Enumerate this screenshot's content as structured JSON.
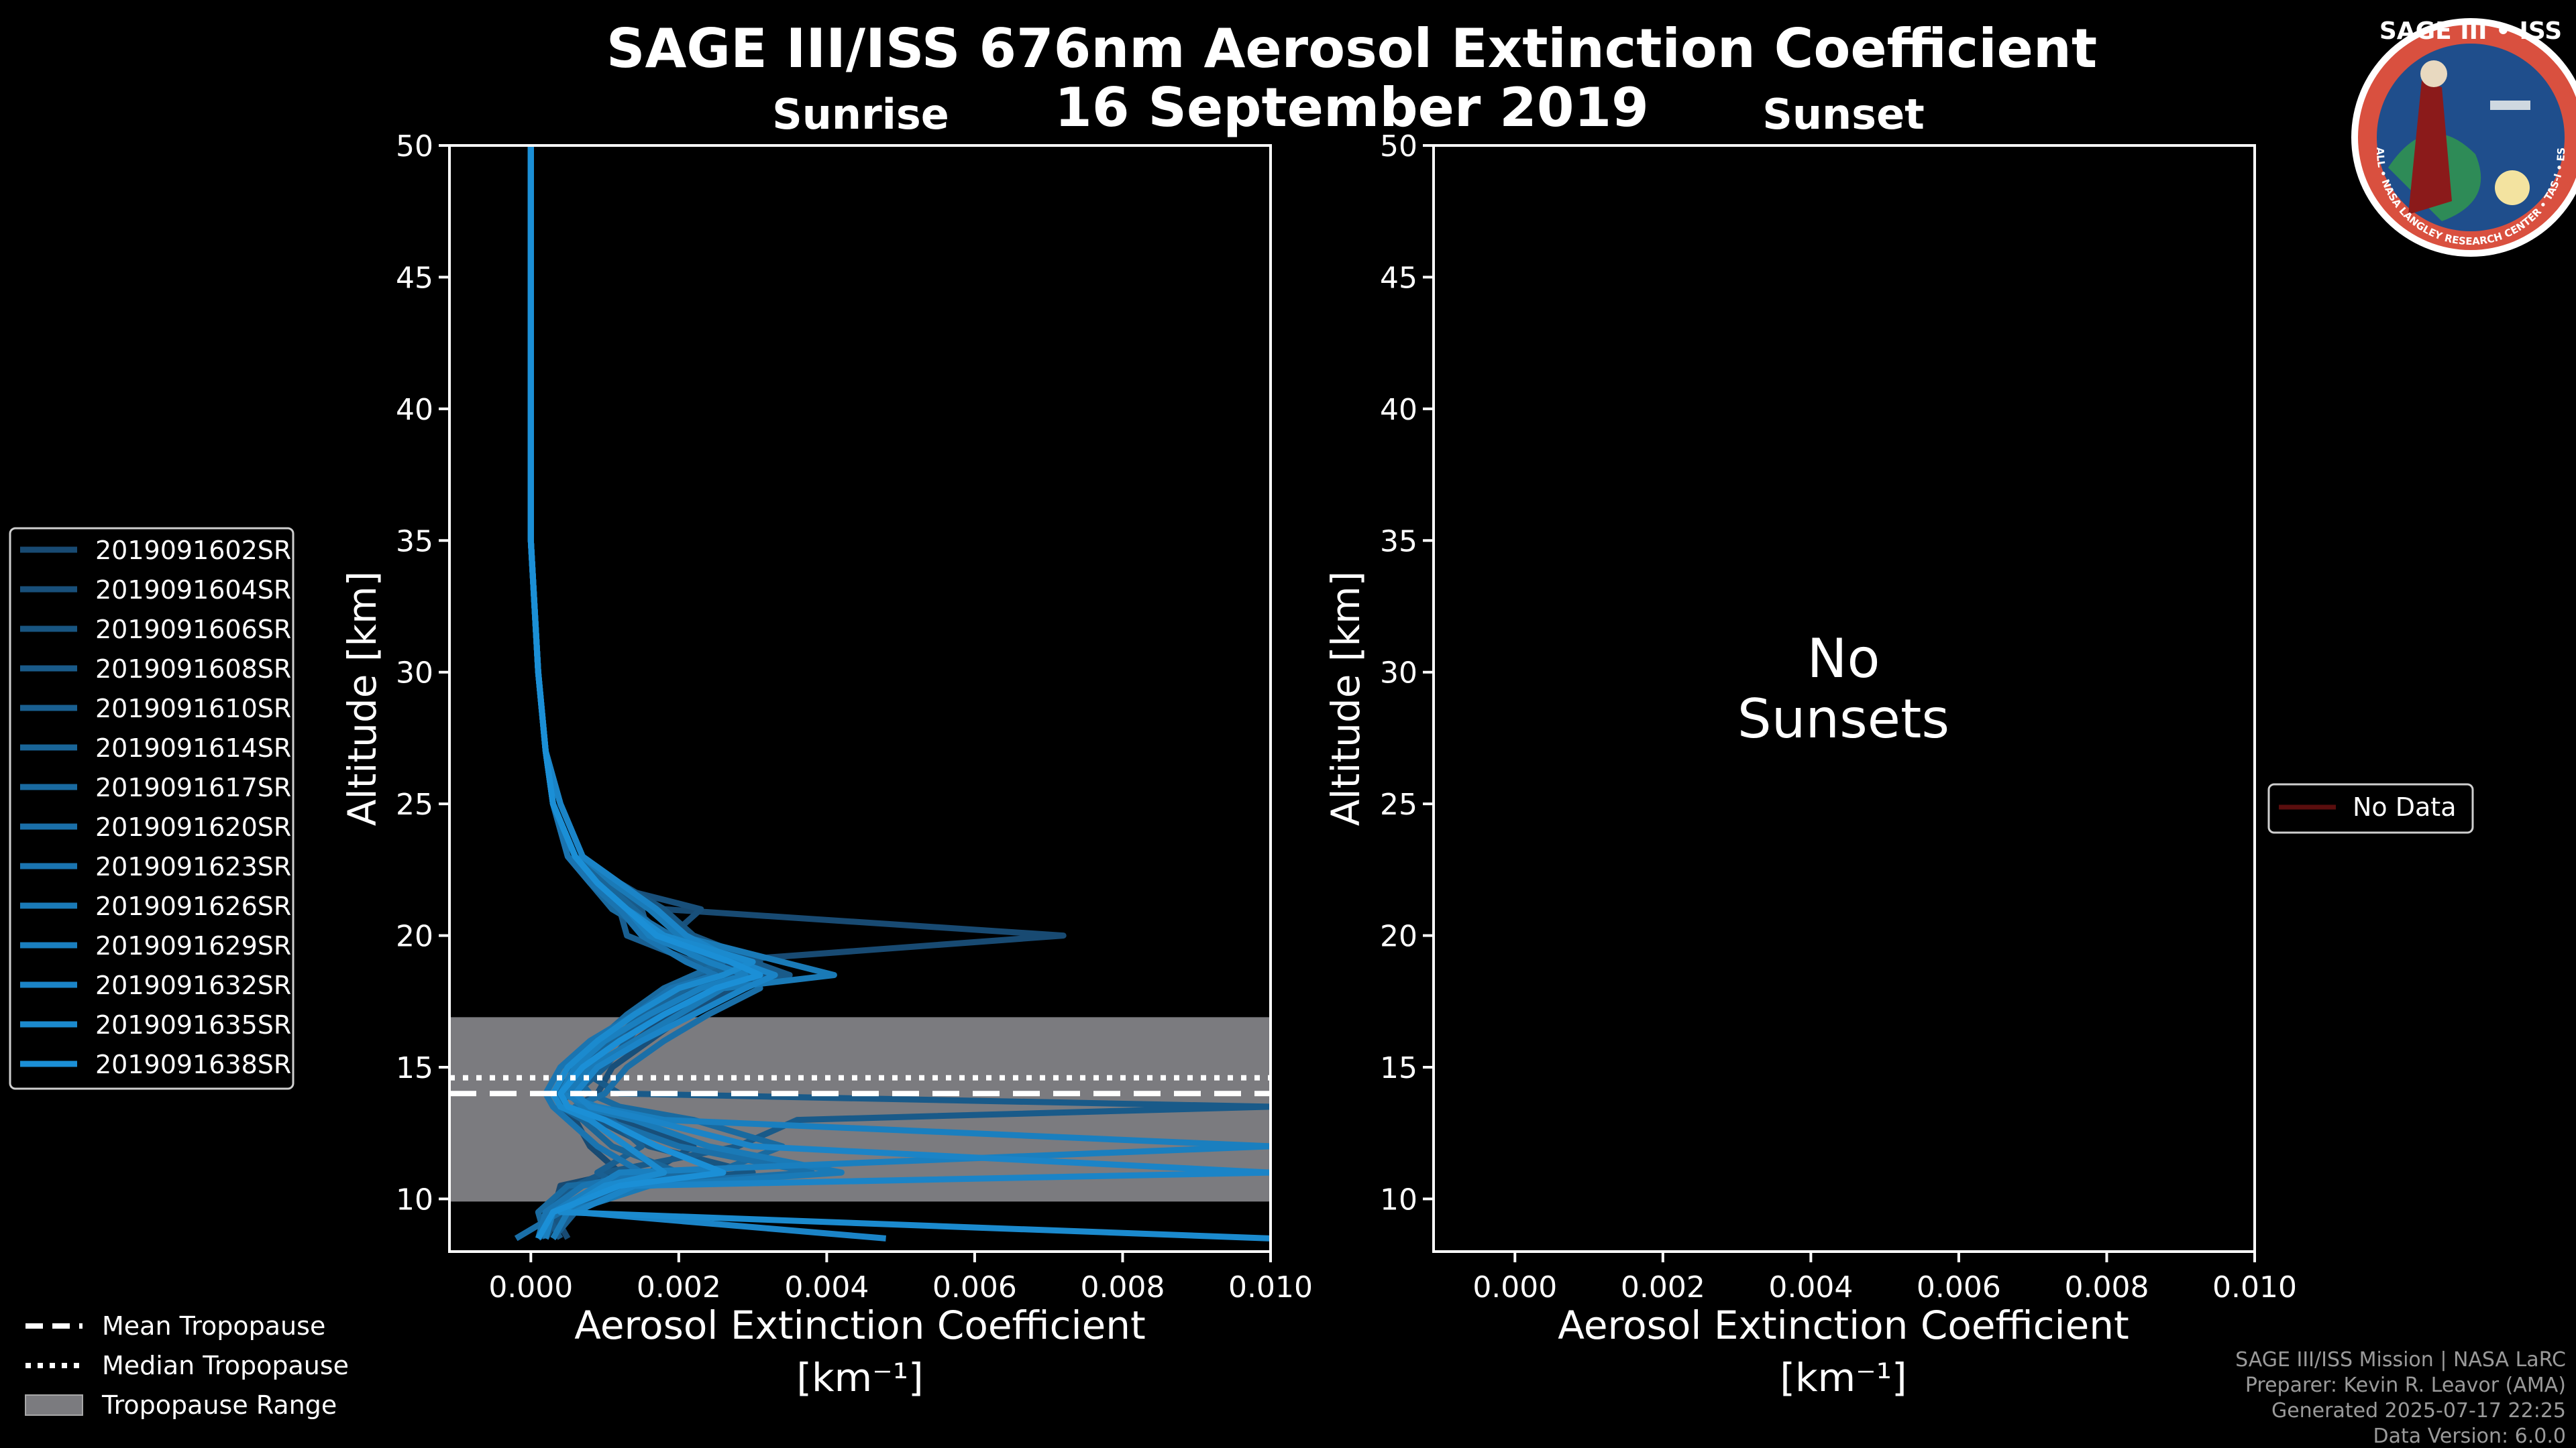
{
  "title": "SAGE III/ISS 676nm Aerosol Extinction Coefficient",
  "date": "16 September 2019",
  "logo": {
    "top_text": "SAGE III • ISS",
    "ring_text": "BALL • NASA LANGLEY RESEARCH CENTER • TAS-I • ESA",
    "ring_color": "#d9503f",
    "field_color": "#1f4e8c"
  },
  "colors": {
    "background": "#000000",
    "foreground": "#ffffff",
    "tropopause_fill": "#7b7b7f",
    "profile_dark": "#184a72",
    "profile_light": "#1b8fd6",
    "no_data": "#5a0e0e"
  },
  "panels": {
    "sunrise": {
      "label": "Sunrise"
    },
    "sunset": {
      "label": "Sunset",
      "empty_line1": "No",
      "empty_line2": "Sunsets"
    }
  },
  "chart_data": [
    {
      "type": "line",
      "panel": "Sunrise",
      "xlabel": "Aerosol Extinction Coefficient",
      "xunit": "[km⁻¹]",
      "ylabel": "Altitude [km]",
      "xlim": [
        -0.0011,
        0.01
      ],
      "ylim": [
        8,
        50
      ],
      "xticks": [
        "0.000",
        "0.002",
        "0.004",
        "0.006",
        "0.008",
        "0.010"
      ],
      "yticks": [
        "10",
        "15",
        "20",
        "25",
        "30",
        "35",
        "40",
        "45",
        "50"
      ],
      "tropopause": {
        "mean": 14.0,
        "median": 14.6,
        "range": [
          9.9,
          16.9
        ]
      },
      "altitudes": [
        8.5,
        9.5,
        10.5,
        11,
        12,
        13,
        13.5,
        14,
        15,
        16,
        17,
        18,
        18.5,
        19,
        20,
        21,
        22,
        23,
        25,
        27,
        30,
        35,
        40,
        45,
        50
      ],
      "series": [
        {
          "name": "2019091602SR",
          "values": [
            0.0005,
            0.0003,
            0.0004,
            0.0012,
            0.0008,
            0.0006,
            0.0004,
            0.0005,
            0.0009,
            0.0014,
            0.0019,
            0.0027,
            0.0026,
            0.0024,
            0.0072,
            0.0018,
            0.0011,
            0.0007,
            0.0004,
            0.0002,
            0.0001,
            0.0,
            0.0,
            0.0,
            0.0
          ]
        },
        {
          "name": "2019091604SR",
          "values": [
            0.0002,
            0.0004,
            0.0013,
            0.0016,
            0.0022,
            0.0012,
            0.0006,
            0.0009,
            0.0011,
            0.0016,
            0.0021,
            0.0028,
            0.0032,
            0.0025,
            0.0019,
            0.0023,
            0.0009,
            0.0006,
            0.0003,
            0.0002,
            0.0001,
            0.0,
            0.0,
            0.0,
            0.0
          ]
        },
        {
          "name": "2019091606SR",
          "values": [
            0.0001,
            0.0005,
            0.0009,
            0.003,
            0.0016,
            0.0009,
            0.0005,
            0.0003,
            0.0007,
            0.0012,
            0.0018,
            0.0024,
            0.0028,
            0.0031,
            0.0022,
            0.0018,
            0.0012,
            0.0007,
            0.0004,
            0.0002,
            0.0001,
            0.0,
            0.0,
            0.0,
            0.0
          ]
        },
        {
          "name": "2019091608SR",
          "values": [
            0.0004,
            0.0002,
            0.0006,
            0.001,
            0.0028,
            0.0036,
            0.01,
            0.0012,
            0.0006,
            0.001,
            0.0017,
            0.0022,
            0.0035,
            0.003,
            0.0016,
            0.0015,
            0.001,
            0.0006,
            0.0003,
            0.0002,
            0.0001,
            0.0,
            0.0,
            0.0,
            0.0
          ]
        },
        {
          "name": "2019091610SR",
          "values": [
            0.0003,
            0.0006,
            0.0012,
            0.0009,
            0.0015,
            0.0011,
            0.0008,
            0.0006,
            0.001,
            0.0013,
            0.0016,
            0.002,
            0.0024,
            0.0022,
            0.0013,
            0.0012,
            0.0009,
            0.0005,
            0.0003,
            0.0002,
            0.0001,
            0.0,
            0.0,
            0.0,
            0.0
          ]
        },
        {
          "name": "2019091614SR",
          "values": [
            0.0001,
            0.0003,
            0.001,
            0.002,
            0.0011,
            0.0007,
            0.0004,
            0.0004,
            0.0006,
            0.0011,
            0.0015,
            0.0021,
            0.0027,
            0.0023,
            0.0018,
            0.0014,
            0.001,
            0.0006,
            0.0003,
            0.0002,
            0.0001,
            0.0,
            0.0,
            0.0,
            0.0
          ]
        },
        {
          "name": "2019091617SR",
          "values": [
            0.0002,
            0.0001,
            0.0005,
            0.0025,
            0.0034,
            0.0022,
            0.0012,
            0.0008,
            0.0005,
            0.0009,
            0.0013,
            0.0018,
            0.0022,
            0.0026,
            0.0017,
            0.0011,
            0.0008,
            0.0005,
            0.0003,
            0.0002,
            0.0001,
            0.0,
            0.0,
            0.0,
            0.0
          ]
        },
        {
          "name": "2019091620SR",
          "values": [
            -0.0002,
            0.0004,
            0.0011,
            0.0038,
            0.002,
            0.001,
            0.0006,
            0.001,
            0.0013,
            0.0018,
            0.0024,
            0.0031,
            0.003,
            0.0027,
            0.0019,
            0.0013,
            0.0009,
            0.0006,
            0.0003,
            0.0002,
            0.0001,
            0.0,
            0.0,
            0.0,
            0.0
          ]
        },
        {
          "name": "2019091623SR",
          "values": [
            0.0001,
            0.0002,
            0.0007,
            0.0015,
            0.0009,
            0.0005,
            0.0003,
            0.0002,
            0.0004,
            0.0008,
            0.0014,
            0.0019,
            0.0025,
            0.0021,
            0.0015,
            0.0012,
            0.0008,
            0.0005,
            0.0003,
            0.0002,
            0.0001,
            0.0,
            0.0,
            0.0,
            0.0
          ]
        },
        {
          "name": "2019091626SR",
          "values": [
            0.0003,
            0.0005,
            0.0016,
            0.0042,
            0.0024,
            0.0014,
            0.0007,
            0.0005,
            0.0008,
            0.0014,
            0.002,
            0.0026,
            0.0041,
            0.0034,
            0.002,
            0.0016,
            0.0011,
            0.0007,
            0.0004,
            0.0002,
            0.0001,
            0.0,
            0.0,
            0.0,
            0.0
          ]
        },
        {
          "name": "2019091629SR",
          "values": [
            0.0002,
            0.0003,
            0.0009,
            0.0012,
            0.01,
            0.0018,
            0.0009,
            0.0004,
            0.0006,
            0.001,
            0.0016,
            0.0023,
            0.0029,
            0.0024,
            0.0016,
            0.0013,
            0.0009,
            0.0006,
            0.0003,
            0.0002,
            0.0001,
            0.0,
            0.0,
            0.0,
            0.0
          ]
        },
        {
          "name": "2019091632SR",
          "values": [
            0.0048,
            0.0006,
            0.0014,
            0.01,
            0.003,
            0.0016,
            0.0008,
            0.0006,
            0.0009,
            0.0015,
            0.0022,
            0.0029,
            0.0033,
            0.0028,
            0.0021,
            0.0017,
            0.0012,
            0.0007,
            0.0004,
            0.0002,
            0.0001,
            0.0,
            0.0,
            0.0,
            0.0
          ]
        },
        {
          "name": "2019091635SR",
          "values": [
            0.01,
            0.0004,
            0.001,
            0.0018,
            0.0013,
            0.0008,
            0.0004,
            0.0003,
            0.0005,
            0.0009,
            0.0014,
            0.002,
            0.0026,
            0.003,
            0.0018,
            0.0013,
            0.0009,
            0.0006,
            0.0003,
            0.0002,
            0.0001,
            0.0,
            0.0,
            0.0,
            0.0
          ]
        },
        {
          "name": "2019091638SR",
          "values": [
            0.0001,
            0.0003,
            0.0012,
            0.0026,
            0.0017,
            0.001,
            0.0005,
            0.0004,
            0.0007,
            0.0012,
            0.0018,
            0.0025,
            0.0031,
            0.0027,
            0.0017,
            0.0013,
            0.0009,
            0.0006,
            0.0003,
            0.0002,
            0.0001,
            0.0,
            0.0,
            0.0,
            0.0
          ]
        }
      ]
    },
    {
      "type": "line",
      "panel": "Sunset",
      "xlabel": "Aerosol Extinction Coefficient",
      "xunit": "[km⁻¹]",
      "ylabel": "Altitude [km]",
      "xlim": [
        -0.0011,
        0.01
      ],
      "ylim": [
        8,
        50
      ],
      "xticks": [
        "0.000",
        "0.002",
        "0.004",
        "0.006",
        "0.008",
        "0.010"
      ],
      "yticks": [
        "10",
        "15",
        "20",
        "25",
        "30",
        "35",
        "40",
        "45",
        "50"
      ],
      "series": []
    }
  ],
  "legends": {
    "profiles_placement": "left",
    "nodata_label": "No Data",
    "tropopause_items": [
      "Mean Tropopause",
      "Median Tropopause",
      "Tropopause Range"
    ]
  },
  "footer": {
    "line1": "SAGE III/ISS Mission | NASA LaRC",
    "line2": "Preparer: Kevin R. Leavor (AMA)",
    "line3": "Generated 2025-07-17 22:25",
    "line4": "Data Version: 6.0.0"
  }
}
